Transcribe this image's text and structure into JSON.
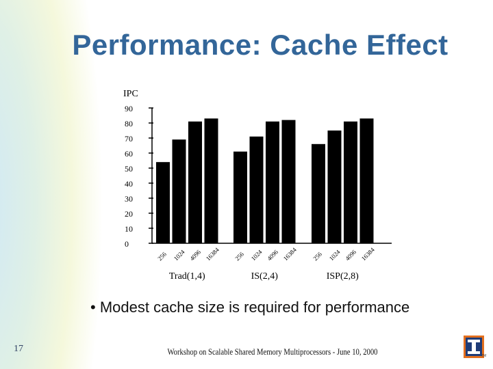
{
  "slide": {
    "title": "Performance: Cache Effect",
    "bullet": "• Modest cache size is required for performance",
    "slide_number": "17",
    "footer": "Workshop on Scalable Shared Memory Multiprocessors - June 10, 2000",
    "logo_letter": "I",
    "logo_tm": "TM"
  },
  "colors": {
    "title": "#336699",
    "bars": "#000000",
    "logo_orange": "#e36f1e",
    "logo_blue": "#1f3c78"
  },
  "chart_data": {
    "type": "bar",
    "ylabel": "IPC",
    "ylim": [
      0,
      90
    ],
    "yticks": [
      "0",
      "10",
      "20",
      "30",
      "40",
      "50",
      "60",
      "70",
      "80",
      "90"
    ],
    "groups": [
      {
        "name": "Trad(1,4)",
        "categories": [
          "256",
          "1024",
          "4096",
          "16384"
        ],
        "values": [
          54,
          69,
          81,
          83
        ]
      },
      {
        "name": "IS(2,4)",
        "categories": [
          "256",
          "1024",
          "4096",
          "16384"
        ],
        "values": [
          61,
          71,
          81,
          82
        ]
      },
      {
        "name": "ISP(2,8)",
        "categories": [
          "256",
          "1024",
          "4096",
          "16384"
        ],
        "values": [
          66,
          75,
          81,
          83
        ]
      }
    ],
    "grid": false,
    "legend": "none"
  }
}
